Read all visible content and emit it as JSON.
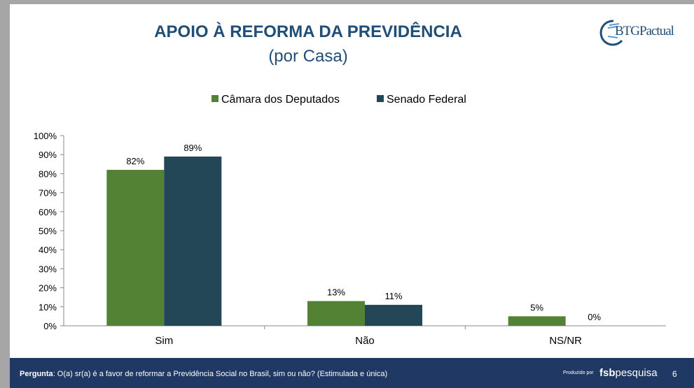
{
  "header": {
    "title": "APOIO À REFORMA DA PREVIDÊNCIA",
    "subtitle": "(por Casa)",
    "logo": "BTGPactual"
  },
  "chart_data": {
    "type": "bar",
    "categories": [
      "Sim",
      "Não",
      "NS/NR"
    ],
    "series": [
      {
        "name": "Câmara dos Deputados",
        "values": [
          82,
          13,
          5
        ],
        "color": "#548235"
      },
      {
        "name": "Senado Federal",
        "values": [
          89,
          11,
          0
        ],
        "color": "#234757"
      }
    ],
    "ylim": [
      0,
      100
    ],
    "yticks": [
      "0%",
      "10%",
      "20%",
      "30%",
      "40%",
      "50%",
      "60%",
      "70%",
      "80%",
      "90%",
      "100%"
    ],
    "legend": "top",
    "grid": false
  },
  "footer": {
    "question_label": "Pergunta",
    "question": ": O(a) sr(a) é a favor de reformar a Previdência Social no Brasil, sim ou não? (Estimulada e única)",
    "produced_by": "Produzido por",
    "brand_bold": "fsb",
    "brand": "pesquisa",
    "page": "6"
  }
}
